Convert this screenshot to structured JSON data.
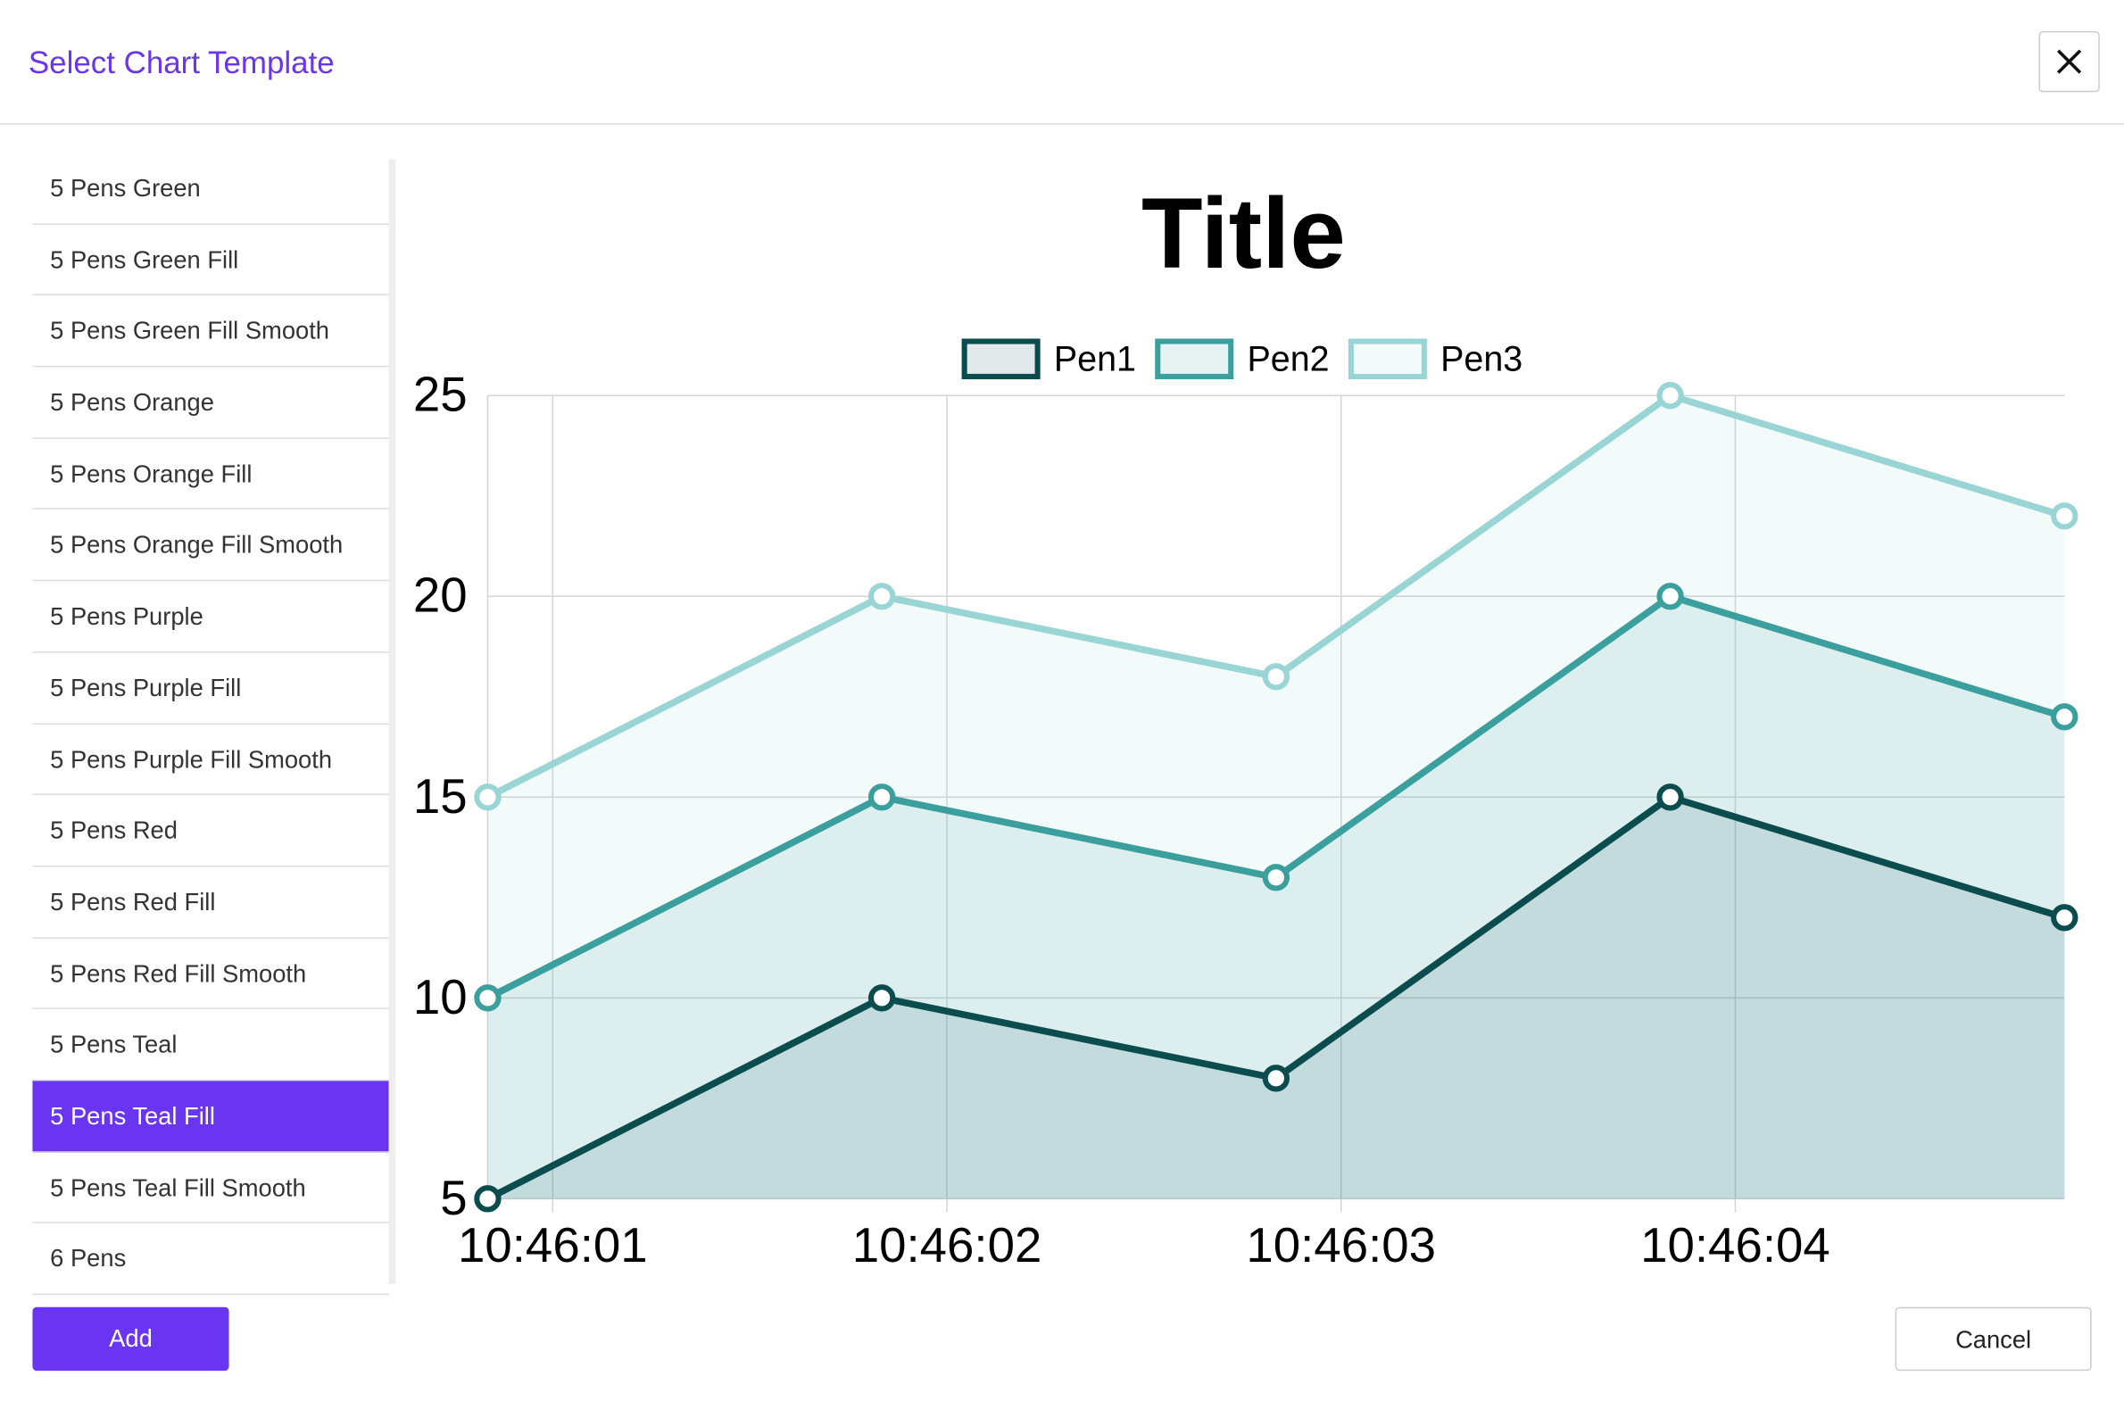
{
  "header": {
    "title": "Select Chart Template"
  },
  "list": {
    "items": [
      "5 Pens Green",
      "5 Pens Green Fill",
      "5 Pens Green Fill Smooth",
      "5 Pens Orange",
      "5 Pens Orange Fill",
      "5 Pens Orange Fill Smooth",
      "5 Pens Purple",
      "5 Pens Purple Fill",
      "5 Pens Purple Fill Smooth",
      "5 Pens Red",
      "5 Pens Red Fill",
      "5 Pens Red Fill Smooth",
      "5 Pens Teal",
      "5 Pens Teal Fill",
      "5 Pens Teal Fill Smooth",
      "6 Pens"
    ],
    "selected": 13
  },
  "buttons": {
    "add": "Add",
    "cancel": "Cancel"
  },
  "chart_data": {
    "type": "line",
    "title": "Title",
    "x": [
      38760.835,
      38761.835,
      38762.835,
      38763.835,
      38764.835
    ],
    "xlim": [
      38760.835,
      38764.835
    ],
    "xticks": [
      {
        "value": 38761,
        "label": "10:46:01"
      },
      {
        "value": 38762,
        "label": "10:46:02"
      },
      {
        "value": 38763,
        "label": "10:46:03"
      },
      {
        "value": 38764,
        "label": "10:46:04"
      }
    ],
    "ylim": [
      5,
      25
    ],
    "yticks": [
      5,
      10,
      15,
      20,
      25
    ],
    "grid": true,
    "fill": true,
    "legend": "top",
    "series": [
      {
        "name": "Pen1",
        "color": "#0b4d4f",
        "values": [
          5,
          10,
          8,
          15,
          12
        ]
      },
      {
        "name": "Pen2",
        "color": "#3a9f9d",
        "values": [
          10,
          15,
          13,
          20,
          17
        ]
      },
      {
        "name": "Pen3",
        "color": "#9ad5d5",
        "values": [
          15,
          20,
          18,
          25,
          22
        ]
      }
    ]
  }
}
